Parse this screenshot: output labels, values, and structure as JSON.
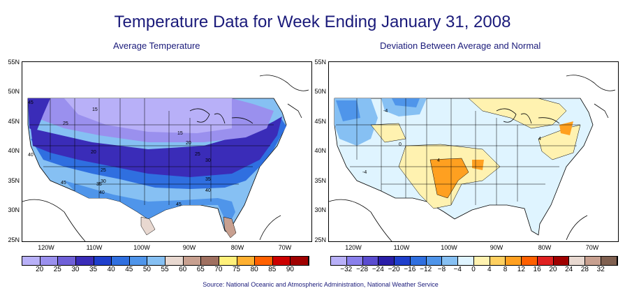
{
  "title": "Temperature Data for Week Ending January 31, 2008",
  "left_panel": {
    "subtitle": "Average Temperature",
    "map_contour_labels": [
      "15",
      "25",
      "15",
      "20",
      "25",
      "30",
      "20",
      "25",
      "30",
      "35",
      "35",
      "40",
      "45",
      "45",
      "40",
      "40",
      "45"
    ],
    "legend_labels": [
      "20",
      "25",
      "30",
      "35",
      "40",
      "45",
      "50",
      "55",
      "60",
      "65",
      "70",
      "75",
      "80",
      "85",
      "90"
    ],
    "legend_colors": [
      "#b8b0f8",
      "#9a90ee",
      "#6f60d8",
      "#3a2cb8",
      "#1f3fcc",
      "#2f6fe0",
      "#4f95ea",
      "#86c0f3",
      "#e8d8d0",
      "#c8a090",
      "#a07060",
      "#fff07a",
      "#ffb030",
      "#ff6000",
      "#cc0000",
      "#a00000"
    ]
  },
  "right_panel": {
    "subtitle": "Deviation Between Average and Normal",
    "map_contour_labels": [
      "-4",
      "-4",
      "4",
      "4",
      "0"
    ],
    "legend_labels": [
      "−32",
      "−28",
      "−24",
      "−20",
      "−16",
      "−12",
      "−8",
      "−4",
      "0",
      "4",
      "8",
      "12",
      "16",
      "20",
      "24",
      "28",
      "32"
    ],
    "legend_colors": [
      "#b8b0f8",
      "#8a80ec",
      "#5a4cd0",
      "#2a1ea8",
      "#1f3fcc",
      "#2f6fe0",
      "#4f95ea",
      "#86c0f3",
      "#dff4ff",
      "#fff2b0",
      "#ffd060",
      "#ffa020",
      "#ff6000",
      "#e02020",
      "#a00000",
      "#e8d8d0",
      "#c8a090",
      "#806050"
    ]
  },
  "axes": {
    "y_labels": [
      "55N",
      "50N",
      "45N",
      "40N",
      "35N",
      "30N",
      "25N"
    ],
    "x_labels": [
      "120W",
      "110W",
      "100W",
      "90W",
      "80W",
      "70W"
    ]
  },
  "source": "Source:  National Oceanic and Atmospheric Administration, National Weather Service"
}
